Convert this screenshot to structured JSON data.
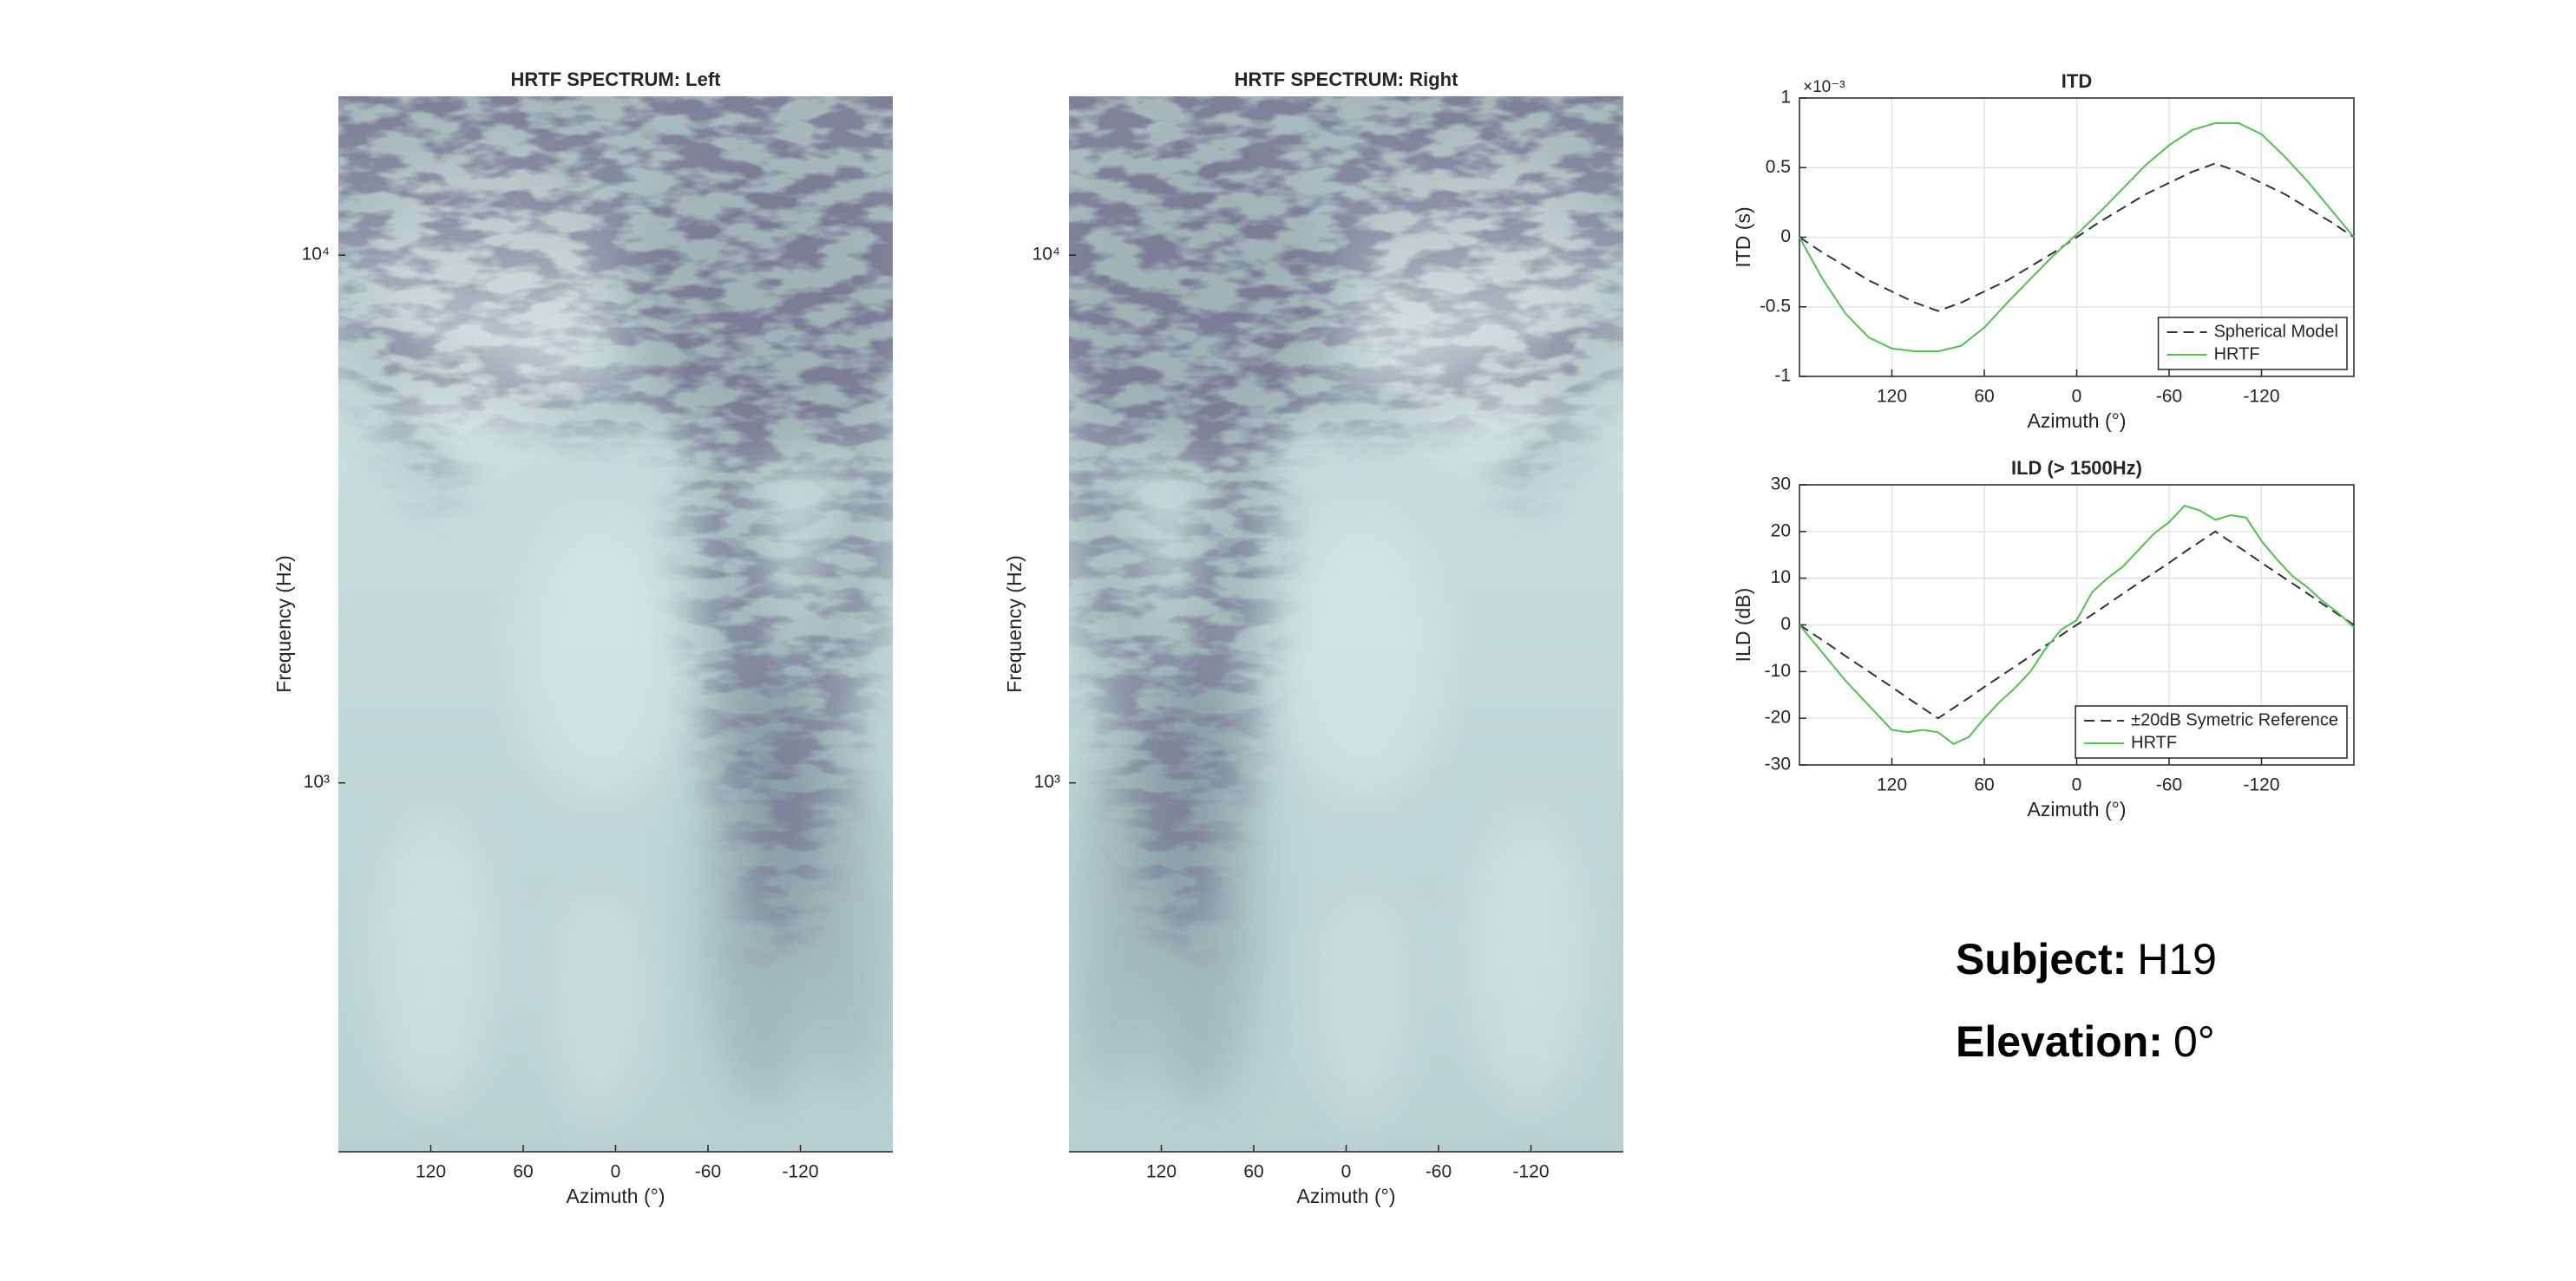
{
  "chart_data": [
    {
      "type": "heatmap",
      "title": "HRTF SPECTRUM: Left",
      "xlabel": "Azimuth (°)",
      "ylabel": "Frequency (Hz)",
      "xlim": [
        180,
        -180
      ],
      "ylim": [
        200,
        20000
      ],
      "yscale": "log",
      "xticks": [
        120,
        60,
        0,
        -60,
        -120
      ],
      "yticks": [
        {
          "value": 1000,
          "label": "10³"
        },
        {
          "value": 10000,
          "label": "10⁴"
        }
      ]
    },
    {
      "type": "heatmap",
      "title": "HRTF SPECTRUM: Right",
      "xlabel": "Azimuth (°)",
      "ylabel": "Frequency (Hz)",
      "xlim": [
        180,
        -180
      ],
      "ylim": [
        200,
        20000
      ],
      "yscale": "log",
      "xticks": [
        120,
        60,
        0,
        -60,
        -120
      ],
      "yticks": [
        {
          "value": 1000,
          "label": "10³"
        },
        {
          "value": 10000,
          "label": "10⁴"
        }
      ]
    },
    {
      "type": "line",
      "title": "ITD",
      "xlabel": "Azimuth (°)",
      "ylabel": "ITD (s)",
      "y_exponent_label": "×10⁻³",
      "xlim": [
        180,
        -180
      ],
      "ylim": [
        -1,
        1
      ],
      "xticks": [
        120,
        60,
        0,
        -60,
        -120
      ],
      "yticks": [
        -1,
        -0.5,
        0,
        0.5,
        1
      ],
      "grid": true,
      "legend": "lower right",
      "x": [
        180,
        165,
        150,
        135,
        120,
        105,
        90,
        75,
        60,
        45,
        30,
        15,
        0,
        -15,
        -30,
        -45,
        -60,
        -75,
        -90,
        -105,
        -120,
        -135,
        -150,
        -165,
        -180
      ],
      "series": [
        {
          "name": "Spherical Model",
          "color": "#333333",
          "dash": "dashed",
          "values": [
            0,
            -0.11,
            -0.21,
            -0.31,
            -0.39,
            -0.47,
            -0.53,
            -0.47,
            -0.39,
            -0.31,
            -0.21,
            -0.11,
            0,
            0.11,
            0.21,
            0.31,
            0.39,
            0.47,
            0.53,
            0.47,
            0.39,
            0.31,
            0.21,
            0.11,
            0
          ]
        },
        {
          "name": "HRTF",
          "color": "#4fc24f",
          "dash": "solid",
          "values": [
            0,
            -0.3,
            -0.55,
            -0.72,
            -0.8,
            -0.82,
            -0.82,
            -0.78,
            -0.65,
            -0.47,
            -0.3,
            -0.13,
            0.02,
            0.18,
            0.35,
            0.52,
            0.66,
            0.77,
            0.82,
            0.82,
            0.74,
            0.58,
            0.4,
            0.2,
            0
          ]
        }
      ]
    },
    {
      "type": "line",
      "title": "ILD (> 1500Hz)",
      "xlabel": "Azimuth (°)",
      "ylabel": "ILD (dB)",
      "xlim": [
        180,
        -180
      ],
      "ylim": [
        -30,
        30
      ],
      "xticks": [
        120,
        60,
        0,
        -60,
        -120
      ],
      "yticks": [
        -30,
        -20,
        -10,
        0,
        10,
        20,
        30
      ],
      "grid": true,
      "legend": "lower right",
      "x": [
        180,
        170,
        160,
        150,
        140,
        130,
        120,
        110,
        100,
        90,
        80,
        70,
        60,
        50,
        40,
        30,
        20,
        10,
        0,
        -10,
        -20,
        -30,
        -40,
        -50,
        -60,
        -70,
        -80,
        -90,
        -100,
        -110,
        -120,
        -130,
        -140,
        -150,
        -160,
        -170,
        -180
      ],
      "series": [
        {
          "name": "±20dB Symetric Reference",
          "color": "#333333",
          "dash": "dashed",
          "values": [
            0,
            -2.2,
            -4.4,
            -6.7,
            -8.9,
            -11.1,
            -13.3,
            -15.6,
            -17.8,
            -20,
            -17.8,
            -15.6,
            -13.3,
            -11.1,
            -8.9,
            -6.7,
            -4.4,
            -2.2,
            0,
            2.2,
            4.4,
            6.7,
            8.9,
            11.1,
            13.3,
            15.6,
            17.8,
            20,
            17.8,
            15.6,
            13.3,
            11.1,
            8.9,
            6.7,
            4.4,
            2.2,
            0
          ]
        },
        {
          "name": "HRTF",
          "color": "#4fc24f",
          "dash": "solid",
          "values": [
            0,
            -4,
            -8,
            -12,
            -15.5,
            -19,
            -22.5,
            -23,
            -22.5,
            -23,
            -25.5,
            -24,
            -20,
            -16.5,
            -13.5,
            -10,
            -5,
            -1,
            1,
            7,
            10,
            12.5,
            16,
            19.5,
            22,
            25.5,
            24.5,
            22.5,
            23.5,
            23,
            18,
            14,
            10.5,
            8,
            5,
            2.5,
            -0.5
          ]
        }
      ]
    }
  ],
  "info": [
    {
      "label": "Subject:",
      "value": "H19"
    },
    {
      "label": "Elevation:",
      "value": "0°"
    }
  ]
}
